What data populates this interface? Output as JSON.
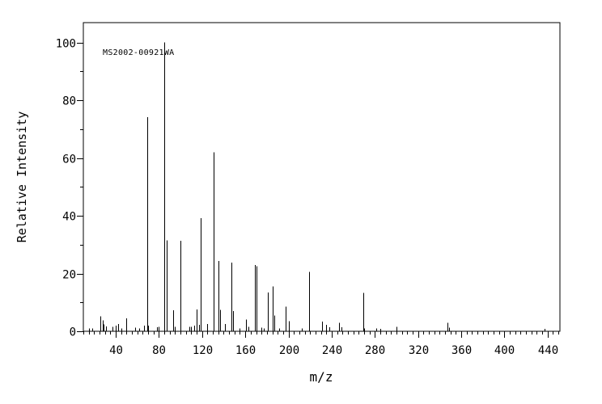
{
  "window": {
    "background": "#ffffff",
    "foreground": "#000000"
  },
  "chart_data": {
    "type": "bar",
    "variant": "mass-spectrum",
    "annotation": "MS2002-00921WA",
    "xlabel": "m/z",
    "ylabel": "Relative Intensity",
    "grid": false,
    "legend": "none",
    "line_color": "#000000",
    "xlim": [
      10,
      451.4
    ],
    "ylim": [
      0,
      106.9
    ],
    "x_major_ticks": [
      40,
      80,
      120,
      160,
      200,
      240,
      280,
      320,
      360,
      400,
      440
    ],
    "x_minor_step": 5,
    "y_major_ticks": [
      0,
      20,
      40,
      60,
      80,
      100
    ],
    "y_minor_step": 10,
    "peaks": [
      [
        15,
        1.0
      ],
      [
        18,
        1.0
      ],
      [
        26,
        5.2
      ],
      [
        28,
        3.8
      ],
      [
        29,
        2.4
      ],
      [
        31,
        1.7
      ],
      [
        37,
        1.5
      ],
      [
        40,
        2.0
      ],
      [
        42,
        2.5
      ],
      [
        45,
        1.0
      ],
      [
        50,
        4.5
      ],
      [
        58,
        1.2
      ],
      [
        62,
        1.0
      ],
      [
        66,
        2.0
      ],
      [
        69,
        74.2
      ],
      [
        70,
        2.0
      ],
      [
        78,
        1.4
      ],
      [
        80,
        1.6
      ],
      [
        85,
        100.0
      ],
      [
        87,
        31.5
      ],
      [
        93,
        7.3
      ],
      [
        95,
        1.5
      ],
      [
        100,
        31.3
      ],
      [
        108,
        1.5
      ],
      [
        110,
        1.5
      ],
      [
        113,
        2.0
      ],
      [
        115,
        7.5
      ],
      [
        117,
        2.3
      ],
      [
        119,
        39.2
      ],
      [
        125,
        2.5
      ],
      [
        131,
        62.0
      ],
      [
        135,
        24.3
      ],
      [
        137,
        7.4
      ],
      [
        141,
        2.5
      ],
      [
        147,
        23.8
      ],
      [
        149,
        7.0
      ],
      [
        155,
        1.0
      ],
      [
        161,
        4.0
      ],
      [
        163,
        1.5
      ],
      [
        169,
        23.0
      ],
      [
        170,
        22.5
      ],
      [
        175,
        1.2
      ],
      [
        177,
        1.0
      ],
      [
        181,
        13.5
      ],
      [
        185,
        15.5
      ],
      [
        187,
        5.5
      ],
      [
        191,
        1.0
      ],
      [
        197,
        8.5
      ],
      [
        200,
        3.5
      ],
      [
        212,
        1.0
      ],
      [
        219,
        20.5
      ],
      [
        231,
        3.4
      ],
      [
        235,
        2.3
      ],
      [
        238,
        1.4
      ],
      [
        247,
        2.9
      ],
      [
        249,
        1.4
      ],
      [
        269,
        13.3
      ],
      [
        270,
        1.0
      ],
      [
        281,
        1.0
      ],
      [
        285,
        0.8
      ],
      [
        300,
        1.6
      ],
      [
        347,
        3.0
      ],
      [
        349,
        1.2
      ],
      [
        437,
        0.8
      ]
    ]
  }
}
